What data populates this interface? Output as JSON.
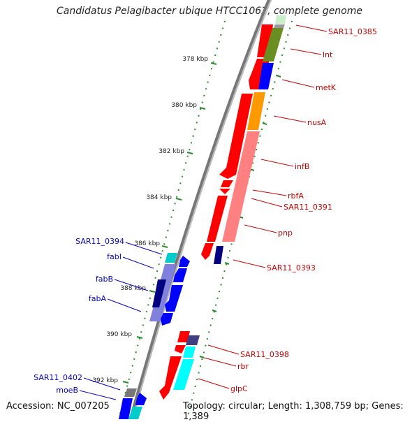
{
  "title": "Candidatus Pelagibacter ubique HTCC1062, complete genome",
  "footer": {
    "accession": "Accession: NC_007205",
    "topology": "Topology: circular; Length: 1,308,759 bp; Genes: 1,389"
  },
  "colors": {
    "forward_label": "#cc0000",
    "reverse_label": "#0000cc",
    "backbone": "#888888",
    "tick": "#2a8a2a",
    "cog_j": "#ff0000",
    "cog_l": "#6b8e23",
    "cog_e": "#0000ff",
    "cog_k": "#ff9900",
    "cog_i": "#ff8080",
    "cog_r": "#00ffff",
    "cog_s": "#000080",
    "cog_unknown": "#999999"
  },
  "scale_labels": [
    "378 kbp",
    "380 kbp",
    "382 kbp",
    "384 kbp",
    "386 kbp",
    "388 kbp",
    "390 kbp",
    "392 kbp"
  ],
  "forward_genes": [
    "SAR11_0385",
    "lnt",
    "metK",
    "nusA",
    "infB",
    "rbfA",
    "SAR11_0391",
    "pnp",
    "SAR11_0393",
    "SAR11_0398",
    "rbr",
    "glpC"
  ],
  "reverse_genes": [
    "SAR11_0394",
    "fabI",
    "fabB",
    "fabA",
    "SAR11_0402",
    "moeB"
  ]
}
